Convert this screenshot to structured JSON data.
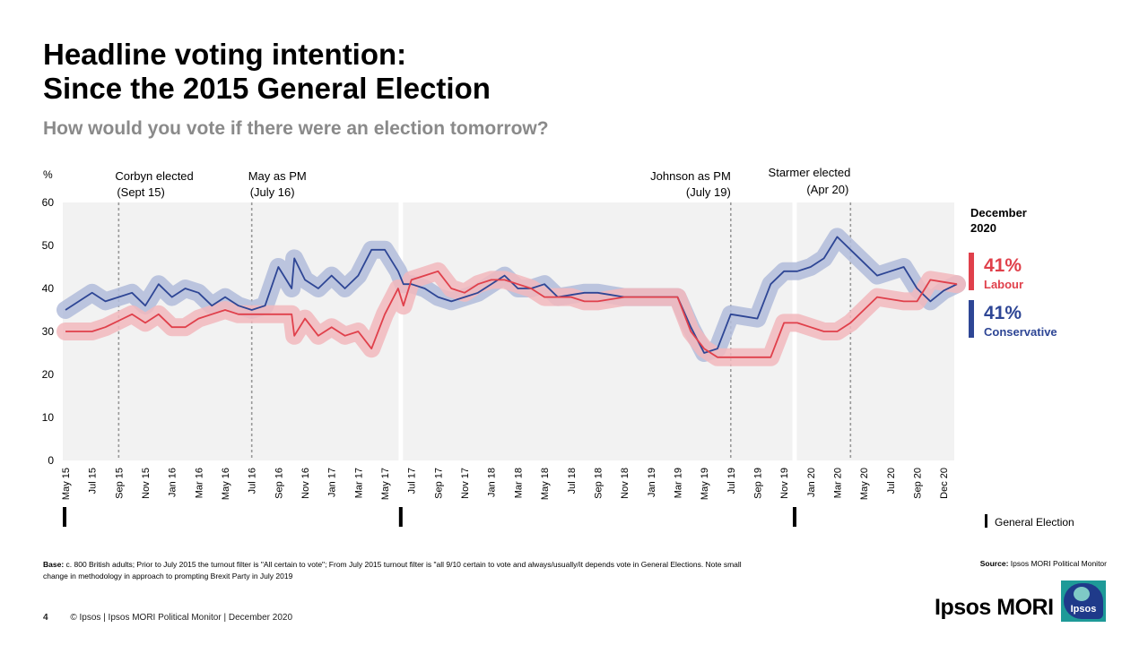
{
  "page": {
    "title_line1": "Headline voting intention:",
    "title_line2": "Since the 2015 General Election",
    "subtitle": "How would you vote if there were an election tomorrow?",
    "base_label": "Base:",
    "base_text": " c. 800 British adults; Prior to July 2015 the turnout filter is \"All certain to vote\"; From July 2015 turnout filter is \"all  9/10 certain to vote and always/usually/it depends vote in General Elections.  Note small change in methodology in approach  to prompting Brexit Party in July 2019",
    "source_label": "Source:",
    "source_text": " Ipsos MORI Political Monitor",
    "page_number": "4",
    "footer": "© Ipsos | Ipsos MORI  Political Monitor | December 2020",
    "brand": "Ipsos MORI",
    "logo_text": "Ipsos"
  },
  "colors": {
    "labour": "#e0404b",
    "labour_band": "#f2b8bd",
    "conservative": "#2e4695",
    "conservative_band": "#b2bcdb",
    "plot_bg": "#f2f2f2",
    "annotation_line": "#999999"
  },
  "chart_data": {
    "type": "line",
    "title": "Headline voting intention: Since the 2015 General Election",
    "ylabel": "%",
    "ylim": [
      0,
      60
    ],
    "yticks": [
      0,
      10,
      20,
      30,
      40,
      50,
      60
    ],
    "xlabels": [
      "May 15",
      "Jul 15",
      "Sep 15",
      "Nov 15",
      "Jan 16",
      "Mar 16",
      "May 16",
      "Jul 16",
      "Sep 16",
      "Nov 16",
      "Jan 17",
      "Mar 17",
      "May 17",
      "Jul 17",
      "Sep 17",
      "Nov 17",
      "Jan 18",
      "Mar 18",
      "May 18",
      "Jul 18",
      "Sep 18",
      "Nov 18",
      "Jan 19",
      "Mar 19",
      "May 19",
      "Jul 19",
      "Sep 19",
      "Nov 19",
      "Jan 20",
      "Mar 20",
      "May 20",
      "Jul 20",
      "Sep 20",
      "Dec 20"
    ],
    "series": [
      {
        "name": "Conservative",
        "points": [
          [
            0,
            35
          ],
          [
            0.5,
            37
          ],
          [
            1,
            39
          ],
          [
            1.5,
            37
          ],
          [
            2,
            38
          ],
          [
            2.5,
            39
          ],
          [
            3,
            36
          ],
          [
            3.5,
            41
          ],
          [
            4,
            38
          ],
          [
            4.5,
            40
          ],
          [
            5,
            39
          ],
          [
            5.5,
            36
          ],
          [
            6,
            38
          ],
          [
            6.5,
            36
          ],
          [
            7,
            35
          ],
          [
            7.5,
            36
          ],
          [
            8,
            45
          ],
          [
            8.5,
            40
          ],
          [
            8.6,
            47
          ],
          [
            9,
            42
          ],
          [
            9.5,
            40
          ],
          [
            10,
            43
          ],
          [
            10.5,
            40
          ],
          [
            11,
            43
          ],
          [
            11.5,
            49
          ],
          [
            12,
            49
          ],
          [
            12.5,
            44
          ],
          [
            12.7,
            41
          ],
          [
            13,
            41
          ],
          [
            13.5,
            40
          ],
          [
            14,
            38
          ],
          [
            14.5,
            37
          ],
          [
            15,
            38
          ],
          [
            15.5,
            39
          ],
          [
            16,
            41
          ],
          [
            16.5,
            43
          ],
          [
            17,
            40
          ],
          [
            17.5,
            40
          ],
          [
            18,
            41
          ],
          [
            18.5,
            38
          ],
          [
            19,
            38.5
          ],
          [
            19.5,
            39
          ],
          [
            20,
            39
          ],
          [
            20.5,
            38.5
          ],
          [
            21,
            38
          ],
          [
            21.5,
            38
          ],
          [
            22,
            38
          ],
          [
            22.5,
            38
          ],
          [
            23,
            38
          ],
          [
            23.5,
            31
          ],
          [
            24,
            25
          ],
          [
            24.5,
            26
          ],
          [
            25,
            34
          ],
          [
            25.5,
            33.5
          ],
          [
            26,
            33
          ],
          [
            26.5,
            41
          ],
          [
            27,
            44
          ],
          [
            27.5,
            44
          ],
          [
            28,
            45
          ],
          [
            28.5,
            47
          ],
          [
            29,
            52
          ],
          [
            29.5,
            49
          ],
          [
            30,
            46
          ],
          [
            30.5,
            43
          ],
          [
            31,
            44
          ],
          [
            31.5,
            45
          ],
          [
            32,
            40
          ],
          [
            32.5,
            37
          ],
          [
            33,
            39.5
          ],
          [
            33.5,
            41
          ]
        ]
      },
      {
        "name": "Labour",
        "points": [
          [
            0,
            30
          ],
          [
            0.5,
            30
          ],
          [
            1,
            30
          ],
          [
            1.5,
            31
          ],
          [
            2,
            32.5
          ],
          [
            2.5,
            34
          ],
          [
            3,
            32
          ],
          [
            3.5,
            34
          ],
          [
            4,
            31
          ],
          [
            4.5,
            31
          ],
          [
            5,
            33
          ],
          [
            5.5,
            34
          ],
          [
            6,
            35
          ],
          [
            6.5,
            34
          ],
          [
            7,
            34
          ],
          [
            7.5,
            34
          ],
          [
            8,
            34
          ],
          [
            8.5,
            34
          ],
          [
            8.6,
            29
          ],
          [
            9,
            33
          ],
          [
            9.5,
            29
          ],
          [
            10,
            31
          ],
          [
            10.5,
            29
          ],
          [
            11,
            30
          ],
          [
            11.5,
            26
          ],
          [
            12,
            34
          ],
          [
            12.5,
            40
          ],
          [
            12.7,
            36
          ],
          [
            13,
            42
          ],
          [
            13.5,
            43
          ],
          [
            14,
            44
          ],
          [
            14.5,
            40
          ],
          [
            15,
            39
          ],
          [
            15.5,
            41
          ],
          [
            16,
            42
          ],
          [
            16.5,
            42
          ],
          [
            17,
            41
          ],
          [
            17.5,
            40
          ],
          [
            18,
            38
          ],
          [
            18.5,
            38
          ],
          [
            19,
            38
          ],
          [
            19.5,
            37
          ],
          [
            20,
            37
          ],
          [
            20.5,
            37.5
          ],
          [
            21,
            38
          ],
          [
            21.5,
            38
          ],
          [
            22,
            38
          ],
          [
            22.5,
            38
          ],
          [
            23,
            38
          ],
          [
            23.5,
            30
          ],
          [
            24,
            26
          ],
          [
            24.5,
            24
          ],
          [
            25,
            24
          ],
          [
            25.5,
            24
          ],
          [
            26,
            24
          ],
          [
            26.5,
            24
          ],
          [
            27,
            32
          ],
          [
            27.5,
            32
          ],
          [
            28,
            31
          ],
          [
            28.5,
            30
          ],
          [
            29,
            30
          ],
          [
            29.5,
            32
          ],
          [
            30,
            35
          ],
          [
            30.5,
            38
          ],
          [
            31,
            37.5
          ],
          [
            31.5,
            37
          ],
          [
            32,
            37
          ],
          [
            32.5,
            42
          ],
          [
            33,
            41.5
          ],
          [
            33.5,
            41
          ]
        ]
      }
    ],
    "general_elections": [
      0,
      12.7,
      27.5
    ],
    "annotations": [
      {
        "x": 2,
        "line1": "Corbyn elected",
        "line2": "(Sept 15)",
        "align": "left"
      },
      {
        "x": 7,
        "line1": "May as PM",
        "line2": "(July 16)",
        "align": "left"
      },
      {
        "x": 25,
        "line1": "Johnson as PM",
        "line2": "(July 19)",
        "align": "right"
      },
      {
        "x": 29.5,
        "line1": "Starmer elected",
        "line2": "(Apr 20)",
        "align": "right"
      }
    ],
    "legend": {
      "heading_line1": "December",
      "heading_line2": "2020",
      "labour_value": "41%",
      "labour_label": "Labour",
      "conservative_value": "41%",
      "conservative_label": "Conservative",
      "election_label": "General Election"
    }
  }
}
